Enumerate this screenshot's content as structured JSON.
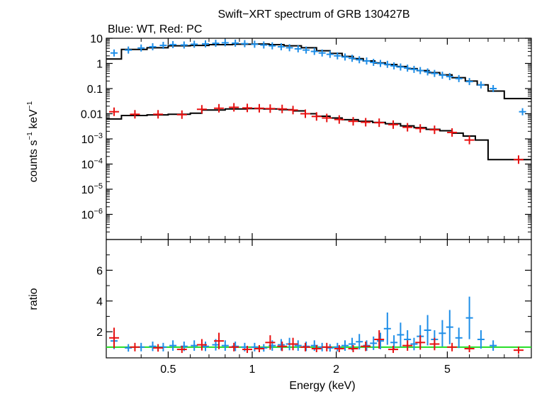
{
  "chart_data": {
    "type": "scatter",
    "title": "Swift−XRT spectrum of GRB 130427B",
    "subtitle": "Blue: WT, Red: PC",
    "xlabel": "Energy (keV)",
    "x_scale": "log",
    "xlim": [
      0.3,
      10
    ],
    "x_ticks": [
      {
        "value": 0.5,
        "label": "0.5"
      },
      {
        "value": 1,
        "label": "1"
      },
      {
        "value": 2,
        "label": "2"
      },
      {
        "value": 5,
        "label": "5"
      }
    ],
    "top_panel": {
      "ylabel": {
        "base": "counts s",
        "sup1": "−1",
        "mid": " keV",
        "sup2": "−1"
      },
      "y_scale": "log",
      "ylim": [
        1e-07,
        10
      ],
      "y_ticks": [
        {
          "value": 10,
          "label": "10"
        },
        {
          "value": 1,
          "label": "1"
        },
        {
          "value": 0.1,
          "label": "0.1"
        },
        {
          "value": 0.01,
          "label": "0.01"
        },
        {
          "value": 0.001,
          "base": "10",
          "exp": "−3"
        },
        {
          "value": 0.0001,
          "base": "10",
          "exp": "−4"
        },
        {
          "value": 1e-05,
          "base": "10",
          "exp": "−5"
        },
        {
          "value": 1e-06,
          "base": "10",
          "exp": "−6"
        }
      ],
      "series": [
        {
          "color": "#1e8ee8",
          "points": [
            [
              0.32,
              2.6
            ],
            [
              0.36,
              3.4
            ],
            [
              0.4,
              4.1
            ],
            [
              0.44,
              4.6
            ],
            [
              0.48,
              5.2
            ],
            [
              0.52,
              5.6
            ],
            [
              0.57,
              5.4
            ],
            [
              0.62,
              5.8
            ],
            [
              0.68,
              6.0
            ],
            [
              0.74,
              6.3
            ],
            [
              0.8,
              6.6
            ],
            [
              0.87,
              6.4
            ],
            [
              0.94,
              6.1
            ],
            [
              1.02,
              5.8
            ],
            [
              1.1,
              5.4
            ],
            [
              1.18,
              5.0
            ],
            [
              1.27,
              4.6
            ],
            [
              1.36,
              4.2
            ],
            [
              1.46,
              3.8
            ],
            [
              1.56,
              3.4
            ],
            [
              1.67,
              3.0
            ],
            [
              1.78,
              2.6
            ],
            [
              1.9,
              2.3
            ],
            [
              2.02,
              2.0
            ],
            [
              2.15,
              1.8
            ],
            [
              2.28,
              1.6
            ],
            [
              2.42,
              1.4
            ],
            [
              2.57,
              1.25
            ],
            [
              2.72,
              1.1
            ],
            [
              2.88,
              1.0
            ],
            [
              3.05,
              0.92
            ],
            [
              3.22,
              0.8
            ],
            [
              3.4,
              0.72
            ],
            [
              3.6,
              0.65
            ],
            [
              3.8,
              0.58
            ],
            [
              4.0,
              0.52
            ],
            [
              4.25,
              0.46
            ],
            [
              4.5,
              0.4
            ],
            [
              4.8,
              0.34
            ],
            [
              5.1,
              0.3
            ],
            [
              5.5,
              0.25
            ],
            [
              6.0,
              0.19
            ],
            [
              6.6,
              0.14
            ],
            [
              7.3,
              0.1
            ],
            [
              9.3,
              0.012
            ]
          ]
        },
        {
          "color": "#e81010",
          "points": [
            [
              0.32,
              0.012
            ],
            [
              0.38,
              0.0095
            ],
            [
              0.46,
              0.0095
            ],
            [
              0.56,
              0.0092
            ],
            [
              0.66,
              0.015
            ],
            [
              0.76,
              0.0165
            ],
            [
              0.86,
              0.018
            ],
            [
              0.96,
              0.017
            ],
            [
              1.06,
              0.0165
            ],
            [
              1.16,
              0.016
            ],
            [
              1.28,
              0.0155
            ],
            [
              1.4,
              0.014
            ],
            [
              1.55,
              0.01
            ],
            [
              1.7,
              0.0078
            ],
            [
              1.85,
              0.0068
            ],
            [
              2.05,
              0.0059
            ],
            [
              2.3,
              0.005
            ],
            [
              2.55,
              0.0046
            ],
            [
              2.85,
              0.0044
            ],
            [
              3.2,
              0.0037
            ],
            [
              3.6,
              0.0029
            ],
            [
              4.0,
              0.0026
            ],
            [
              4.5,
              0.0023
            ],
            [
              5.2,
              0.0018
            ],
            [
              6.0,
              0.0009
            ],
            [
              9.0,
              0.00015
            ]
          ]
        }
      ],
      "models": [
        {
          "color": "#000000",
          "steps": [
            [
              0.3,
              1.5
            ],
            [
              0.34,
              3.6
            ],
            [
              0.42,
              4.2
            ],
            [
              0.5,
              5.0
            ],
            [
              0.6,
              5.2
            ],
            [
              0.7,
              5.6
            ],
            [
              0.85,
              5.8
            ],
            [
              1.0,
              5.9
            ],
            [
              1.15,
              5.6
            ],
            [
              1.3,
              5.0
            ],
            [
              1.5,
              4.2
            ],
            [
              1.7,
              3.2
            ],
            [
              1.9,
              2.5
            ],
            [
              2.1,
              1.9
            ],
            [
              2.3,
              1.55
            ],
            [
              2.5,
              1.25
            ],
            [
              2.75,
              1.05
            ],
            [
              3.0,
              0.9
            ],
            [
              3.3,
              0.75
            ],
            [
              3.6,
              0.62
            ],
            [
              3.9,
              0.52
            ],
            [
              4.3,
              0.43
            ],
            [
              4.7,
              0.35
            ],
            [
              5.2,
              0.27
            ],
            [
              5.8,
              0.2
            ],
            [
              6.4,
              0.14
            ],
            [
              7.0,
              0.08
            ],
            [
              8.0,
              0.04
            ],
            [
              10,
              0.04
            ]
          ]
        },
        {
          "color": "#000000",
          "steps": [
            [
              0.3,
              0.0062
            ],
            [
              0.34,
              0.0085
            ],
            [
              0.42,
              0.009
            ],
            [
              0.5,
              0.0095
            ],
            [
              0.6,
              0.0105
            ],
            [
              0.66,
              0.014
            ],
            [
              0.8,
              0.0155
            ],
            [
              0.95,
              0.016
            ],
            [
              1.1,
              0.0155
            ],
            [
              1.25,
              0.0145
            ],
            [
              1.4,
              0.013
            ],
            [
              1.55,
              0.01
            ],
            [
              1.7,
              0.008
            ],
            [
              1.9,
              0.0068
            ],
            [
              2.1,
              0.0058
            ],
            [
              2.4,
              0.005
            ],
            [
              2.7,
              0.0045
            ],
            [
              3.0,
              0.004
            ],
            [
              3.4,
              0.0033
            ],
            [
              3.8,
              0.0028
            ],
            [
              4.2,
              0.0024
            ],
            [
              4.7,
              0.0021
            ],
            [
              5.2,
              0.0017
            ],
            [
              5.7,
              0.0013
            ],
            [
              6.3,
              0.0009
            ],
            [
              7.0,
              0.00015
            ],
            [
              10,
              0.00015
            ]
          ]
        }
      ]
    },
    "bottom_panel": {
      "ylabel": "ratio",
      "y_scale": "linear",
      "ylim": [
        0.3,
        8.0
      ],
      "y_ticks": [
        {
          "value": 2,
          "label": "2"
        },
        {
          "value": 4,
          "label": "4"
        },
        {
          "value": 6,
          "label": "6"
        }
      ],
      "reference_line": {
        "value": 1.0,
        "color": "#22dd22"
      },
      "series": [
        {
          "color": "#1e8ee8",
          "points": [
            [
              0.32,
              1.4
            ],
            [
              0.36,
              0.95
            ],
            [
              0.4,
              1.0
            ],
            [
              0.44,
              1.05
            ],
            [
              0.48,
              1.0
            ],
            [
              0.52,
              1.1
            ],
            [
              0.57,
              1.05
            ],
            [
              0.62,
              1.1
            ],
            [
              0.68,
              1.05
            ],
            [
              0.74,
              1.15
            ],
            [
              0.8,
              1.1
            ],
            [
              0.87,
              1.05
            ],
            [
              0.94,
              1.0
            ],
            [
              1.02,
              1.0
            ],
            [
              1.1,
              0.95
            ],
            [
              1.18,
              1.1
            ],
            [
              1.27,
              1.15
            ],
            [
              1.36,
              1.2
            ],
            [
              1.46,
              1.1
            ],
            [
              1.56,
              1.05
            ],
            [
              1.67,
              1.1
            ],
            [
              1.78,
              1.0
            ],
            [
              1.9,
              0.95
            ],
            [
              2.02,
              1.0
            ],
            [
              2.15,
              1.1
            ],
            [
              2.28,
              1.2
            ],
            [
              2.42,
              1.35
            ],
            [
              2.57,
              1.1
            ],
            [
              2.72,
              1.25
            ],
            [
              2.88,
              1.4
            ],
            [
              3.05,
              2.2
            ],
            [
              3.22,
              1.3
            ],
            [
              3.4,
              1.8
            ],
            [
              3.6,
              1.5
            ],
            [
              3.8,
              1.2
            ],
            [
              4.0,
              1.7
            ],
            [
              4.25,
              2.1
            ],
            [
              4.5,
              1.5
            ],
            [
              4.8,
              1.9
            ],
            [
              5.1,
              2.3
            ],
            [
              5.5,
              1.6
            ],
            [
              6.0,
              2.9
            ],
            [
              6.6,
              1.5
            ],
            [
              7.3,
              1.1
            ]
          ]
        },
        {
          "color": "#e81010",
          "points": [
            [
              0.32,
              1.6
            ],
            [
              0.38,
              1.0
            ],
            [
              0.46,
              0.95
            ],
            [
              0.56,
              0.85
            ],
            [
              0.66,
              1.15
            ],
            [
              0.76,
              1.4
            ],
            [
              0.86,
              1.0
            ],
            [
              0.96,
              0.85
            ],
            [
              1.06,
              0.9
            ],
            [
              1.16,
              1.3
            ],
            [
              1.28,
              1.05
            ],
            [
              1.4,
              1.2
            ],
            [
              1.55,
              1.0
            ],
            [
              1.7,
              0.9
            ],
            [
              1.85,
              1.0
            ],
            [
              2.05,
              0.9
            ],
            [
              2.3,
              0.9
            ],
            [
              2.55,
              1.05
            ],
            [
              2.85,
              1.5
            ],
            [
              3.2,
              0.85
            ],
            [
              3.6,
              1.1
            ],
            [
              4.0,
              1.3
            ],
            [
              4.5,
              1.2
            ],
            [
              5.2,
              1.0
            ],
            [
              6.0,
              0.9
            ],
            [
              9.0,
              0.8
            ]
          ]
        }
      ]
    }
  }
}
